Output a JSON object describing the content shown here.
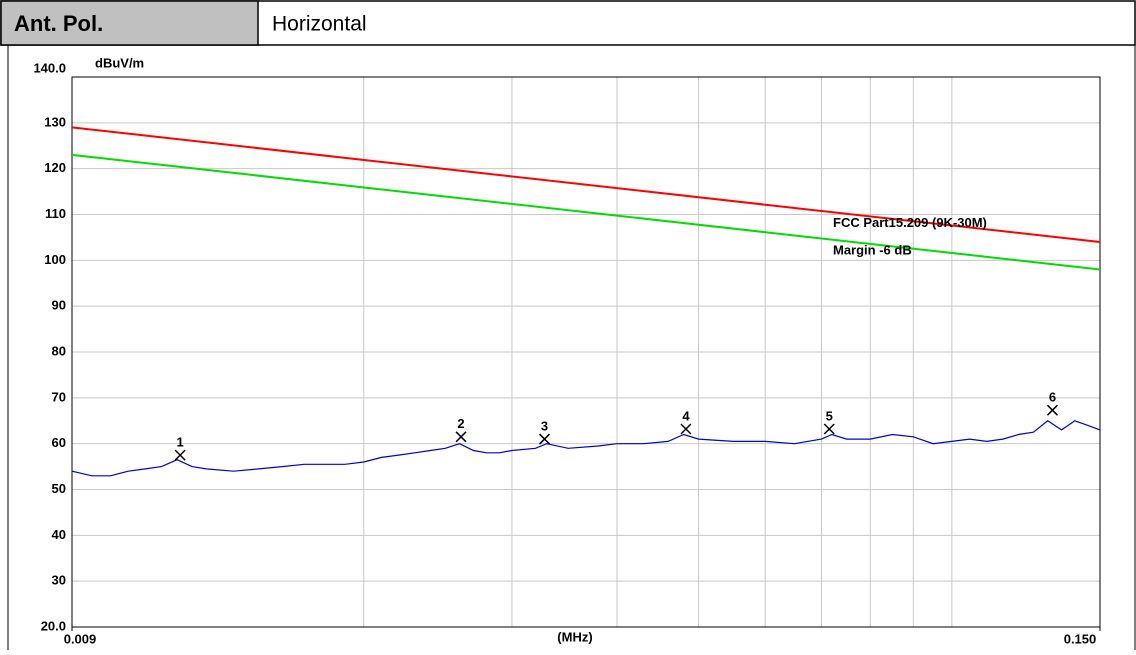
{
  "header": {
    "label": "Ant. Pol.",
    "value": "Horizontal"
  },
  "chart_data": {
    "type": "line",
    "ylabel": "dBuV/m",
    "xlabel": "(MHz)",
    "xscale": "log",
    "xlim": [
      0.009,
      0.15
    ],
    "xticks": [
      {
        "value": 0.009,
        "label": "0.009"
      },
      {
        "value": 0.15,
        "label": "0.150"
      }
    ],
    "xgrid": [
      0.02,
      0.03,
      0.04,
      0.05,
      0.06,
      0.07,
      0.08,
      0.09,
      0.1
    ],
    "ylim": [
      20,
      140
    ],
    "yticks": [
      {
        "value": 20,
        "label": "20.0"
      },
      30,
      40,
      50,
      60,
      70,
      80,
      90,
      100,
      110,
      120,
      130,
      {
        "value": 140,
        "label": "140.0"
      }
    ],
    "grid": true,
    "series": [
      {
        "name": "FCC Part15.209 (9K-30M)",
        "color": "#ff0000",
        "x": [
          0.009,
          0.15
        ],
        "values": [
          129,
          104
        ]
      },
      {
        "name": "Margin -6 dB",
        "color": "#00dd00",
        "x": [
          0.009,
          0.15
        ],
        "values": [
          123,
          98
        ]
      },
      {
        "color": "#0000dd",
        "x": [
          0.009,
          0.0095,
          0.01,
          0.0105,
          0.011,
          0.0115,
          0.012,
          0.0125,
          0.013,
          0.014,
          0.015,
          0.016,
          0.017,
          0.018,
          0.019,
          0.02,
          0.021,
          0.022,
          0.023,
          0.024,
          0.025,
          0.026,
          0.027,
          0.028,
          0.029,
          0.03,
          0.032,
          0.033,
          0.035,
          0.038,
          0.04,
          0.043,
          0.046,
          0.048,
          0.05,
          0.055,
          0.06,
          0.065,
          0.07,
          0.072,
          0.075,
          0.08,
          0.085,
          0.09,
          0.095,
          0.1,
          0.105,
          0.11,
          0.115,
          0.12,
          0.125,
          0.13,
          0.135,
          0.14,
          0.145,
          0.15
        ],
        "values": [
          54,
          53,
          53,
          54,
          54.5,
          55,
          56.5,
          55,
          54.5,
          54,
          54.5,
          55,
          55.5,
          55.5,
          55.5,
          56,
          57,
          57.5,
          58,
          58.5,
          59,
          60,
          58.5,
          58,
          58,
          58.5,
          59,
          60,
          59,
          59.5,
          60,
          60,
          60.5,
          62,
          61,
          60.5,
          60.5,
          60,
          61,
          62,
          61,
          61,
          62,
          61.5,
          60,
          60.5,
          61,
          60.5,
          61,
          62,
          62.5,
          65,
          63,
          65,
          64,
          63
        ]
      }
    ],
    "markers": {
      "labels": [
        "1",
        "2",
        "3",
        "4",
        "5",
        "6"
      ],
      "x": [
        0.0121,
        0.0261,
        0.0328,
        0.0483,
        0.0715,
        0.1317
      ],
      "values": [
        57.5,
        61.5,
        61,
        63.2,
        63.2,
        67.3
      ]
    }
  }
}
